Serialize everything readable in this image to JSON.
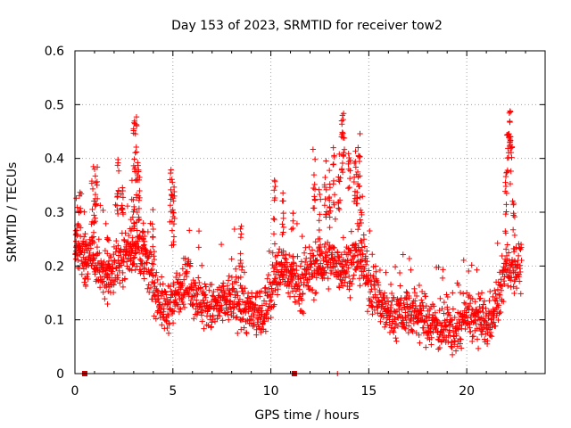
{
  "chart_data": {
    "type": "scatter",
    "title": "Day 153 of 2023, SRMTID for receiver tow2",
    "xlabel": "GPS time / hours",
    "ylabel": "SRMTID / TECUs",
    "xlim": [
      0,
      24
    ],
    "ylim": [
      0,
      0.6
    ],
    "xticks": [
      0,
      5,
      10,
      15,
      20
    ],
    "xtick_labels": [
      "0",
      "5",
      "10",
      "15",
      "20"
    ],
    "yticks": [
      0,
      0.1,
      0.2,
      0.3,
      0.4,
      0.5,
      0.6
    ],
    "ytick_labels": [
      "0",
      "0.1",
      "0.2",
      "0.3",
      "0.4",
      "0.5",
      "0.6"
    ],
    "grid": true,
    "legend": "none",
    "marker": "plus",
    "color": "#ff0000",
    "baseline_box_color": "#cc0000",
    "trend": [
      [
        0.0,
        0.24
      ],
      [
        0.5,
        0.22
      ],
      [
        1.0,
        0.21
      ],
      [
        1.5,
        0.18
      ],
      [
        2.0,
        0.2
      ],
      [
        2.5,
        0.22
      ],
      [
        3.0,
        0.24
      ],
      [
        3.5,
        0.22
      ],
      [
        4.0,
        0.17
      ],
      [
        4.5,
        0.12
      ],
      [
        5.0,
        0.13
      ],
      [
        5.5,
        0.17
      ],
      [
        6.0,
        0.16
      ],
      [
        6.5,
        0.13
      ],
      [
        7.0,
        0.12
      ],
      [
        7.5,
        0.13
      ],
      [
        8.0,
        0.14
      ],
      [
        8.5,
        0.13
      ],
      [
        9.0,
        0.11
      ],
      [
        9.5,
        0.1
      ],
      [
        10.0,
        0.15
      ],
      [
        10.5,
        0.2
      ],
      [
        11.0,
        0.18
      ],
      [
        11.5,
        0.16
      ],
      [
        12.0,
        0.19
      ],
      [
        12.5,
        0.2
      ],
      [
        13.0,
        0.21
      ],
      [
        13.5,
        0.2
      ],
      [
        14.0,
        0.2
      ],
      [
        14.5,
        0.22
      ],
      [
        15.0,
        0.17
      ],
      [
        15.5,
        0.14
      ],
      [
        16.0,
        0.11
      ],
      [
        16.5,
        0.11
      ],
      [
        17.0,
        0.12
      ],
      [
        17.5,
        0.11
      ],
      [
        18.0,
        0.1
      ],
      [
        18.5,
        0.09
      ],
      [
        19.0,
        0.08
      ],
      [
        19.5,
        0.08
      ],
      [
        20.0,
        0.11
      ],
      [
        20.5,
        0.1
      ],
      [
        21.0,
        0.09
      ],
      [
        21.5,
        0.12
      ],
      [
        22.0,
        0.2
      ],
      [
        22.5,
        0.2
      ]
    ],
    "bursts": [
      [
        0.1,
        0.33
      ],
      [
        0.25,
        0.34
      ],
      [
        0.5,
        0.28
      ],
      [
        0.9,
        0.36
      ],
      [
        1.0,
        0.4
      ],
      [
        1.1,
        0.41
      ],
      [
        1.7,
        0.3
      ],
      [
        2.2,
        0.41
      ],
      [
        2.4,
        0.36
      ],
      [
        2.9,
        0.31
      ],
      [
        3.0,
        0.34
      ],
      [
        3.05,
        0.47
      ],
      [
        3.1,
        0.48
      ],
      [
        3.2,
        0.42
      ],
      [
        3.3,
        0.37
      ],
      [
        3.5,
        0.3
      ],
      [
        4.0,
        0.28
      ],
      [
        4.9,
        0.4
      ],
      [
        5.0,
        0.38
      ],
      [
        5.05,
        0.35
      ],
      [
        8.5,
        0.28
      ],
      [
        10.2,
        0.36
      ],
      [
        10.6,
        0.34
      ],
      [
        11.1,
        0.3
      ],
      [
        12.2,
        0.42
      ],
      [
        12.5,
        0.35
      ],
      [
        12.8,
        0.4
      ],
      [
        13.0,
        0.38
      ],
      [
        13.2,
        0.43
      ],
      [
        13.5,
        0.42
      ],
      [
        13.65,
        0.48
      ],
      [
        13.7,
        0.49
      ],
      [
        14.0,
        0.43
      ],
      [
        14.3,
        0.42
      ],
      [
        14.4,
        0.38
      ],
      [
        14.5,
        0.46
      ],
      [
        14.6,
        0.33
      ],
      [
        22.0,
        0.38
      ],
      [
        22.1,
        0.45
      ],
      [
        22.2,
        0.5
      ],
      [
        22.25,
        0.49
      ],
      [
        22.4,
        0.32
      ]
    ],
    "baseline_markers": [
      0.5,
      11.2
    ]
  }
}
